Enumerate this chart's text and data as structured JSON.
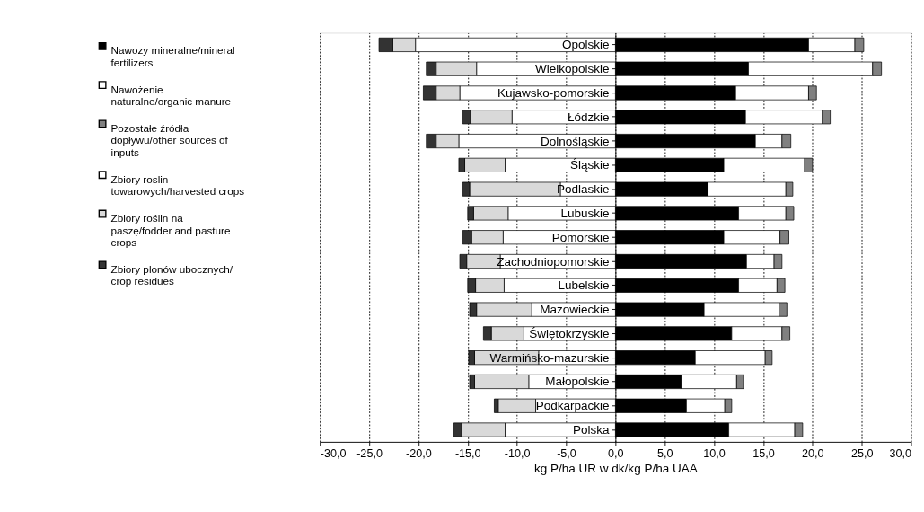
{
  "chart_data": {
    "type": "bar",
    "orientation": "horizontal",
    "stacked": true,
    "categories": [
      "Opolskie",
      "Wielkopolskie",
      "Kujawsko-pomorskie",
      "Łódzkie",
      "Dolnośląskie",
      "Śląskie",
      "Podlaskie",
      "Lubuskie",
      "Pomorskie",
      "Zachodniopomorskie",
      "Lubelskie",
      "Mazowieckie",
      "Świętokrzyskie",
      "Warmińsko-mazurskie",
      "Małopolskie",
      "Podkarpackie",
      "Polska"
    ],
    "series": [
      {
        "name": "Nawozy mineralne/mineral fertilizers",
        "color": "#000000",
        "values": [
          19.6,
          13.5,
          12.2,
          13.2,
          14.2,
          11.0,
          9.4,
          12.5,
          11.0,
          13.3,
          12.5,
          9.0,
          11.8,
          8.1,
          6.7,
          7.2,
          11.5
        ]
      },
      {
        "name": "Nawożenie naturalne/organic manure",
        "color": "#ffffff",
        "values": [
          4.7,
          12.6,
          7.4,
          7.8,
          2.7,
          8.2,
          7.9,
          4.8,
          5.7,
          2.8,
          3.9,
          7.6,
          5.1,
          7.1,
          5.6,
          3.9,
          6.7
        ]
      },
      {
        "name": "Pozostałe źródła dopływu/other sources of inputs",
        "color": "#808080",
        "values": [
          0.9,
          0.9,
          0.8,
          0.8,
          0.9,
          0.8,
          0.7,
          0.8,
          0.9,
          0.8,
          0.8,
          0.8,
          0.8,
          0.7,
          0.7,
          0.7,
          0.8
        ]
      },
      {
        "name": "Zbiory roslin towarowych/harvested crops",
        "color": "#ffffff",
        "values": [
          -20.3,
          -14.1,
          -15.8,
          -10.5,
          -15.9,
          -11.2,
          -5.6,
          -10.9,
          -11.4,
          -11.7,
          -11.3,
          -8.5,
          -9.3,
          -7.8,
          -8.8,
          -8.1,
          -11.2
        ]
      },
      {
        "name": "Zbiory roślin na paszę/fodder and pasture crops",
        "color": "#d9d9d9",
        "values": [
          -2.3,
          -4.1,
          -2.4,
          -4.2,
          -2.3,
          -4.1,
          -9.2,
          -3.5,
          -3.2,
          -3.4,
          -2.9,
          -5.6,
          -3.3,
          -6.5,
          -5.5,
          -3.8,
          -4.4
        ]
      },
      {
        "name": "Zbiory plonów ubocznych/ crop residues",
        "color": "#333333",
        "values": [
          -1.4,
          -1.0,
          -1.3,
          -0.8,
          -1.0,
          -0.6,
          -0.7,
          -0.6,
          -0.9,
          -0.7,
          -0.8,
          -0.7,
          -0.8,
          -0.6,
          -0.5,
          -0.4,
          -0.8
        ]
      }
    ],
    "xlabel": "kg P/ha UR w dk/kg P/ha UAA",
    "xlim": [
      -30,
      30
    ],
    "xticks": [
      {
        "value": -30,
        "label": "-30,0"
      },
      {
        "value": -25,
        "label": "-25,0"
      },
      {
        "value": -20,
        "label": "-20,0"
      },
      {
        "value": -15,
        "label": "-15,0"
      },
      {
        "value": -10,
        "label": "-10,0"
      },
      {
        "value": -5,
        "label": "-5,0"
      },
      {
        "value": 0,
        "label": "0,0"
      },
      {
        "value": 5,
        "label": "5,0"
      },
      {
        "value": 10,
        "label": "10,0"
      },
      {
        "value": 15,
        "label": "15,0"
      },
      {
        "value": 20,
        "label": "20,0"
      },
      {
        "value": 25,
        "label": "25,0"
      },
      {
        "value": 30,
        "label": "30,0"
      }
    ],
    "grid": "x",
    "legend": "left"
  }
}
